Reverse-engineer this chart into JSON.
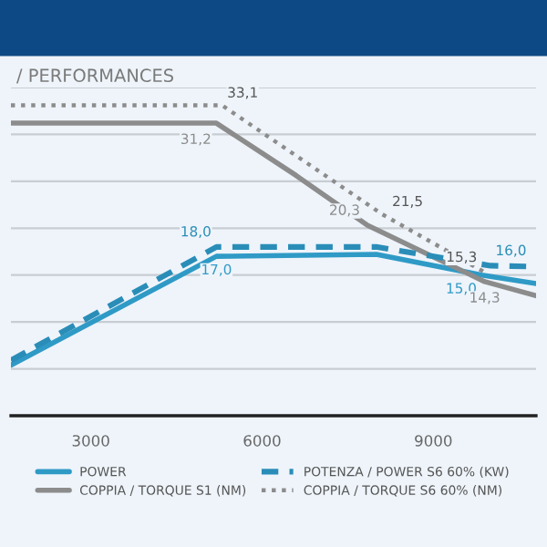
{
  "chart_data": {
    "type": "line",
    "title": "/ PERFORMANCES",
    "xlim": [
      1600,
      10800
    ],
    "xticks": [
      3000,
      6000,
      9000
    ],
    "ylim": [
      0,
      35
    ],
    "yticks": [
      {
        "value": 5,
        "label": null
      },
      {
        "value": 10,
        "label": null
      },
      {
        "value": 15,
        "label": null
      },
      {
        "value": 20,
        "label": null
      },
      {
        "value": 25,
        "label": null
      },
      {
        "value": 30,
        "label": null
      },
      {
        "value": 35,
        "label": null
      }
    ],
    "tick_labels": "x",
    "grid": "y",
    "legend": "bottom",
    "series": [
      {
        "name": "POWER",
        "color": "#2f9ac6",
        "line_style": "solid",
        "x": [
          1600,
          5200,
          8000,
          9850,
          10800
        ],
        "values": [
          5.4,
          17.0,
          17.2,
          15.0,
          14.1
        ],
        "value_labels": [
          null,
          "17,0",
          null,
          "15,0",
          null
        ]
      },
      {
        "name": "COPPIA / TORQUE S1 (NM)",
        "color": "#8c8c8c",
        "line_style": "solid",
        "x": [
          1600,
          5200,
          6600,
          7850,
          9900,
          10800
        ],
        "values": [
          31.2,
          31.2,
          25.6,
          20.3,
          14.3,
          12.8
        ],
        "value_labels": [
          null,
          "31,2",
          null,
          "20,3",
          "14,3",
          null
        ]
      },
      {
        "name": "POTENZA / POWER S6 60% (KW)",
        "color": "#2a8db8",
        "line_style": "dashed",
        "x": [
          1600,
          5200,
          8000,
          10000,
          10800
        ],
        "values": [
          5.9,
          18.0,
          18.0,
          16.0,
          15.9
        ],
        "value_labels": [
          null,
          "18,0",
          null,
          "16,0",
          null
        ]
      },
      {
        "name": "COPPIA / TORQUE S6 60% (NM)",
        "color": "#8c8c8c",
        "line_style": "dotted",
        "x": [
          1600,
          5300,
          8100,
          9900
        ],
        "values": [
          33.1,
          33.1,
          21.5,
          15.3
        ],
        "value_labels": [
          null,
          "33,1",
          "21,5",
          "15,3"
        ]
      }
    ]
  }
}
